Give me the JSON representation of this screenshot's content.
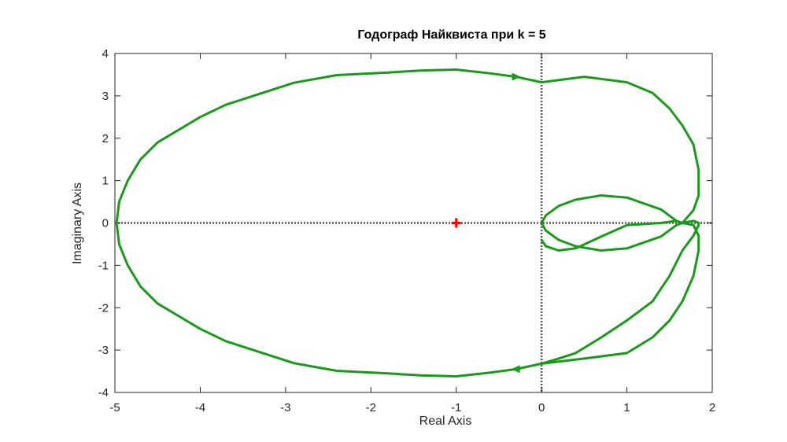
{
  "chart_data": {
    "type": "line",
    "title": "Годограф Найквиста при k = 5",
    "xlabel": "Real Axis",
    "ylabel": "Imaginary Axis",
    "xlim": [
      -5,
      2
    ],
    "ylim": [
      -4,
      4
    ],
    "xticks": [
      -5,
      -4,
      -3,
      -2,
      -1,
      0,
      1,
      2
    ],
    "yticks": [
      -4,
      -3,
      -2,
      -1,
      0,
      1,
      2,
      3,
      4
    ],
    "xtick_labels": [
      "-5",
      "-4",
      "-3",
      "-2",
      "-1",
      "0",
      "1",
      "2"
    ],
    "ytick_labels": [
      "-4",
      "-3",
      "-2",
      "-1",
      "0",
      "1",
      "2",
      "3",
      "4"
    ],
    "grid": false,
    "colors": {
      "curve": "#1a9a1a",
      "critical_point": "#ff0000",
      "zero_lines": "#555555"
    },
    "critical_point": {
      "x": -1,
      "y": 0
    },
    "series": [
      {
        "x": [
          0.0,
          0.2,
          0.4,
          0.7,
          1.0,
          1.3,
          1.5,
          1.65,
          1.78,
          1.84,
          1.84,
          1.78,
          1.65,
          1.58,
          1.4,
          1.0,
          0.7,
          0.4,
          0.2,
          0.05,
          0.0,
          0.05,
          0.2,
          0.4,
          0.7,
          1.0,
          1.4,
          1.58,
          1.65,
          1.78,
          1.84,
          1.84,
          1.78,
          1.65,
          1.5,
          1.3,
          1.0,
          0.5,
          0.0,
          -0.3,
          -0.6,
          -1.0,
          -1.4,
          -1.8,
          -2.4,
          -2.9,
          -3.3,
          -3.7,
          -4.0,
          -4.25,
          -4.5,
          -4.7,
          -4.85,
          -4.95,
          -4.98,
          -4.95,
          -4.85,
          -4.7,
          -4.5,
          -4.25,
          -4.0,
          -3.7,
          -3.3,
          -2.9,
          -2.4,
          -1.8,
          -1.4,
          -1.0,
          -0.6,
          -0.3,
          0.0,
          0.5,
          1.0,
          1.3,
          1.5,
          1.65,
          1.78,
          1.84,
          1.84,
          1.78,
          1.65,
          1.58,
          1.4,
          1.0,
          0.7,
          0.4,
          0.2,
          0.05,
          0.0
        ],
        "y": [
          -3.32,
          -3.2,
          -3.07,
          -2.7,
          -2.3,
          -1.85,
          -1.25,
          -0.65,
          -0.3,
          -0.05,
          0.0,
          0.05,
          0.0,
          -0.05,
          -0.32,
          -0.6,
          -0.65,
          -0.55,
          -0.4,
          -0.18,
          0.0,
          0.18,
          0.4,
          0.55,
          0.65,
          0.6,
          0.32,
          0.05,
          0.0,
          0.3,
          0.65,
          1.25,
          1.85,
          2.3,
          2.7,
          3.07,
          3.32,
          3.45,
          3.32,
          3.45,
          3.53,
          3.62,
          3.6,
          3.55,
          3.49,
          3.31,
          3.05,
          2.79,
          2.5,
          2.2,
          1.9,
          1.5,
          1.0,
          0.5,
          0.0,
          -0.5,
          -1.0,
          -1.5,
          -1.9,
          -2.2,
          -2.5,
          -2.79,
          -3.05,
          -3.31,
          -3.49,
          -3.55,
          -3.6,
          -3.62,
          -3.53,
          -3.45,
          -3.32,
          -3.2,
          -3.07,
          -2.7,
          -2.3,
          -1.85,
          -1.25,
          -0.65,
          -0.3,
          -0.05,
          0.0,
          0.05,
          0.0,
          -0.05,
          -0.32,
          -0.6,
          -0.65,
          -0.55,
          -0.4
        ]
      }
    ]
  }
}
